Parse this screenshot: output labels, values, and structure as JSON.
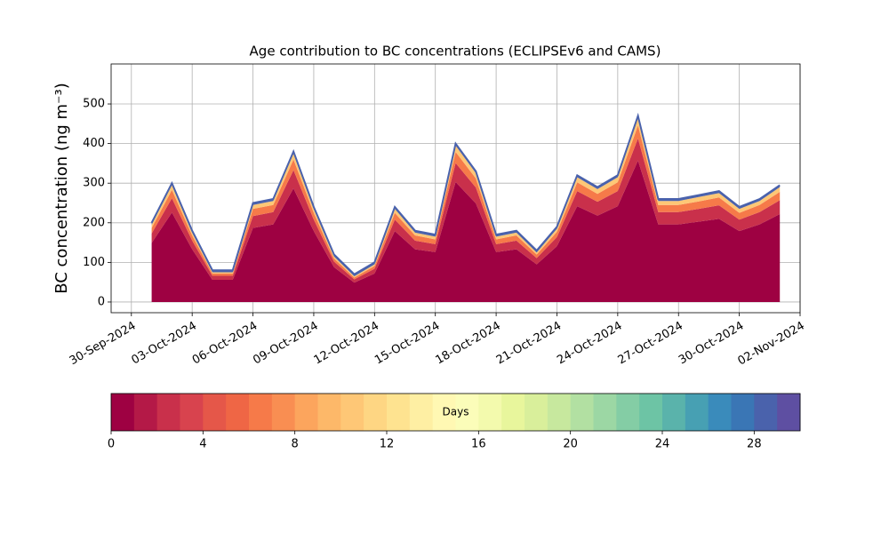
{
  "chart_data": {
    "type": "stacked_area",
    "title": "Age contribution to BC concentrations (ECLIPSEv6 and CAMS)",
    "y_label": "BC concentration (ng m⁻³)",
    "x": [
      "01-Oct-2024",
      "02-Oct-2024",
      "03-Oct-2024",
      "04-Oct-2024",
      "05-Oct-2024",
      "06-Oct-2024",
      "07-Oct-2024",
      "08-Oct-2024",
      "09-Oct-2024",
      "10-Oct-2024",
      "11-Oct-2024",
      "12-Oct-2024",
      "13-Oct-2024",
      "14-Oct-2024",
      "15-Oct-2024",
      "16-Oct-2024",
      "17-Oct-2024",
      "18-Oct-2024",
      "19-Oct-2024",
      "20-Oct-2024",
      "21-Oct-2024",
      "22-Oct-2024",
      "23-Oct-2024",
      "24-Oct-2024",
      "25-Oct-2024",
      "26-Oct-2024",
      "27-Oct-2024",
      "28-Oct-2024",
      "29-Oct-2024",
      "30-Oct-2024",
      "31-Oct-2024",
      "01-Nov-2024"
    ],
    "series": [
      {
        "color": "#9e0142",
        "values": [
          149,
          226,
          133,
          56,
          56,
          187,
          196,
          287,
          179,
          88,
          49,
          72,
          179,
          133,
          126,
          303,
          249,
          126,
          133,
          95,
          141,
          242,
          218,
          242,
          357,
          196,
          196,
          203,
          210,
          179,
          196,
          222
        ]
      },
      {
        "color": "#c9304b",
        "values": [
          24,
          36,
          22,
          10,
          10,
          30,
          31,
          46,
          29,
          14,
          8,
          12,
          29,
          22,
          20,
          48,
          40,
          20,
          22,
          16,
          23,
          38,
          35,
          38,
          56,
          31,
          31,
          32,
          34,
          29,
          31,
          35
        ]
      },
      {
        "color": "#f67a49",
        "values": [
          14,
          21,
          13,
          6,
          6,
          18,
          18,
          27,
          17,
          8,
          5,
          7,
          17,
          13,
          12,
          28,
          23,
          12,
          13,
          9,
          13,
          22,
          20,
          22,
          33,
          18,
          18,
          19,
          20,
          17,
          18,
          21
        ]
      },
      {
        "color": "#fec776",
        "values": [
          8,
          12,
          7,
          3,
          3,
          10,
          10,
          15,
          10,
          5,
          3,
          4,
          10,
          7,
          7,
          16,
          13,
          7,
          7,
          5,
          8,
          13,
          12,
          13,
          19,
          10,
          10,
          11,
          11,
          10,
          10,
          12
        ]
      },
      {
        "color": "#4a62ac",
        "values": [
          5,
          5,
          5,
          5,
          5,
          5,
          5,
          5,
          5,
          5,
          5,
          5,
          5,
          5,
          5,
          5,
          5,
          5,
          5,
          5,
          5,
          5,
          5,
          5,
          5,
          5,
          5,
          5,
          5,
          5,
          5,
          5
        ]
      }
    ],
    "xlim": [
      "29-Sep-2024",
      "02-Nov-2024"
    ],
    "xticks": [
      "30-Sep-2024",
      "03-Oct-2024",
      "06-Oct-2024",
      "09-Oct-2024",
      "12-Oct-2024",
      "15-Oct-2024",
      "18-Oct-2024",
      "21-Oct-2024",
      "24-Oct-2024",
      "27-Oct-2024",
      "30-Oct-2024",
      "02-Nov-2024"
    ],
    "ylim": [
      -27,
      601
    ],
    "yticks": [
      0,
      100,
      200,
      300,
      400,
      500
    ],
    "grid": true,
    "colorbar": {
      "label": "Days",
      "lim": [
        0,
        30
      ],
      "ticks": [
        0,
        4,
        8,
        12,
        16,
        20,
        24,
        28
      ],
      "colors": [
        "#9e0142",
        "#b41947",
        "#c9304b",
        "#d8434e",
        "#e55749",
        "#ef6645",
        "#f67a49",
        "#f98e52",
        "#fca55d",
        "#fdb869",
        "#fec776",
        "#fed683",
        "#fee390",
        "#feefa3",
        "#fff8b3",
        "#fbfdb9",
        "#f3faad",
        "#e8f69c",
        "#d9ef9b",
        "#c7e89e",
        "#b2e0a2",
        "#9cd7a4",
        "#84cda5",
        "#6dc4a5",
        "#5ab3ab",
        "#47a0b3",
        "#3a8bbb",
        "#3a76b5",
        "#4a62ac",
        "#5e4fa2"
      ]
    }
  }
}
